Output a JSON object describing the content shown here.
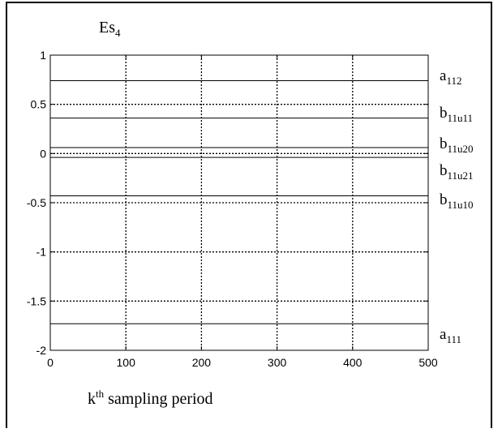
{
  "chart_data": {
    "type": "line",
    "title": "Es",
    "title_sub": "4",
    "xlabel_main": "k",
    "xlabel_sup": "th",
    "xlabel_rest": " sampling period",
    "ylabel": "",
    "xlim": [
      0,
      500
    ],
    "ylim": [
      -2,
      1
    ],
    "grid": true,
    "x_ticks": [
      0,
      100,
      200,
      300,
      400,
      500
    ],
    "x_tick_labels": [
      "0",
      "100",
      "200",
      "300",
      "400",
      "500"
    ],
    "y_ticks": [
      1,
      0.5,
      0,
      -0.5,
      -1,
      -1.5,
      -2
    ],
    "y_tick_labels": [
      "1",
      "0.5",
      "0",
      "-0.5",
      "-1",
      "-1.5",
      "-2"
    ],
    "series": [
      {
        "base": "a",
        "sub": "112",
        "x": [
          0,
          500
        ],
        "y": [
          0.74,
          0.74
        ]
      },
      {
        "base": "b",
        "sub": "11u11",
        "x": [
          0,
          500
        ],
        "y": [
          0.36,
          0.36
        ]
      },
      {
        "base": "b",
        "sub": "11u20",
        "x": [
          0,
          500
        ],
        "y": [
          0.06,
          0.06
        ]
      },
      {
        "base": "b",
        "sub": "11u21",
        "x": [
          0,
          500
        ],
        "y": [
          -0.04,
          -0.04
        ]
      },
      {
        "base": "b",
        "sub": "11u10",
        "x": [
          0,
          500
        ],
        "y": [
          -0.43,
          -0.43
        ]
      },
      {
        "base": "a",
        "sub": "111",
        "x": [
          0,
          500
        ],
        "y": [
          -1.73,
          -1.73
        ]
      }
    ]
  }
}
